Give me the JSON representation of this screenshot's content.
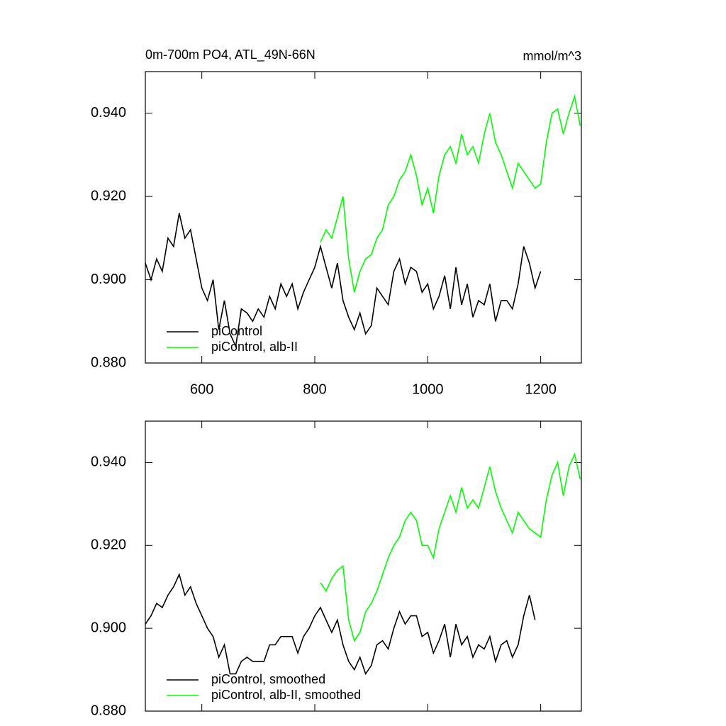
{
  "chart_data": [
    {
      "type": "line",
      "title": "0m-700m PO4, ATL_49N-66N",
      "unit_label": "mmol/m^3",
      "xlim": [
        500,
        1272
      ],
      "ylim": [
        0.88,
        0.95
      ],
      "xticks": [
        600,
        800,
        1000,
        1200
      ],
      "yticks": [
        {
          "value": 0.88,
          "label": "0.880"
        },
        {
          "value": 0.9,
          "label": "0.900"
        },
        {
          "value": 0.92,
          "label": "0.920"
        },
        {
          "value": 0.94,
          "label": "0.940"
        }
      ],
      "legend": "lower left",
      "series": [
        {
          "name": "piControl",
          "color": "#000000",
          "x": [
            500,
            510,
            520,
            530,
            540,
            550,
            560,
            570,
            580,
            590,
            600,
            610,
            620,
            630,
            640,
            650,
            660,
            670,
            680,
            690,
            700,
            710,
            720,
            730,
            740,
            750,
            760,
            770,
            780,
            790,
            800,
            810,
            820,
            830,
            840,
            850,
            860,
            870,
            880,
            890,
            900,
            910,
            920,
            930,
            940,
            950,
            960,
            970,
            980,
            990,
            1000,
            1010,
            1020,
            1030,
            1040,
            1050,
            1060,
            1070,
            1080,
            1090,
            1100,
            1110,
            1120,
            1130,
            1140,
            1150,
            1160,
            1170,
            1180,
            1190,
            1200
          ],
          "values": [
            0.904,
            0.9,
            0.905,
            0.902,
            0.91,
            0.908,
            0.916,
            0.91,
            0.912,
            0.905,
            0.898,
            0.895,
            0.9,
            0.888,
            0.895,
            0.887,
            0.884,
            0.893,
            0.892,
            0.89,
            0.893,
            0.891,
            0.896,
            0.893,
            0.899,
            0.896,
            0.899,
            0.893,
            0.897,
            0.9,
            0.903,
            0.908,
            0.903,
            0.898,
            0.904,
            0.895,
            0.891,
            0.888,
            0.892,
            0.887,
            0.889,
            0.898,
            0.896,
            0.894,
            0.902,
            0.905,
            0.899,
            0.903,
            0.902,
            0.897,
            0.899,
            0.893,
            0.896,
            0.901,
            0.893,
            0.903,
            0.894,
            0.899,
            0.891,
            0.895,
            0.894,
            0.899,
            0.89,
            0.895,
            0.895,
            0.893,
            0.899,
            0.908,
            0.904,
            0.898,
            0.902
          ]
        },
        {
          "name": "piControl, alb-II",
          "color": "#00ff00",
          "x": [
            810,
            820,
            830,
            840,
            850,
            860,
            870,
            880,
            890,
            900,
            910,
            920,
            930,
            940,
            950,
            960,
            970,
            980,
            990,
            1000,
            1010,
            1020,
            1030,
            1040,
            1050,
            1060,
            1070,
            1080,
            1090,
            1100,
            1110,
            1120,
            1130,
            1140,
            1150,
            1160,
            1170,
            1180,
            1190,
            1200,
            1210,
            1220,
            1230,
            1240,
            1250,
            1260,
            1270
          ],
          "values": [
            0.909,
            0.912,
            0.91,
            0.915,
            0.92,
            0.905,
            0.897,
            0.902,
            0.905,
            0.906,
            0.91,
            0.912,
            0.918,
            0.92,
            0.924,
            0.926,
            0.93,
            0.925,
            0.918,
            0.922,
            0.916,
            0.925,
            0.93,
            0.932,
            0.928,
            0.935,
            0.93,
            0.932,
            0.928,
            0.935,
            0.94,
            0.933,
            0.93,
            0.926,
            0.922,
            0.928,
            0.926,
            0.924,
            0.922,
            0.923,
            0.933,
            0.94,
            0.941,
            0.935,
            0.94,
            0.944,
            0.937
          ]
        }
      ]
    },
    {
      "type": "line",
      "xlim": [
        500,
        1272
      ],
      "ylim": [
        0.88,
        0.95
      ],
      "xticks": [
        600,
        800,
        1000,
        1200
      ],
      "yticks": [
        {
          "value": 0.88,
          "label": "0.880"
        },
        {
          "value": 0.9,
          "label": "0.900"
        },
        {
          "value": 0.92,
          "label": "0.920"
        },
        {
          "value": 0.94,
          "label": "0.940"
        }
      ],
      "legend": "lower left",
      "series": [
        {
          "name": "piControl, smoothed",
          "color": "#000000",
          "x": [
            500,
            510,
            520,
            530,
            540,
            550,
            560,
            570,
            580,
            590,
            600,
            610,
            620,
            630,
            640,
            650,
            660,
            670,
            680,
            690,
            700,
            710,
            720,
            730,
            740,
            750,
            760,
            770,
            780,
            790,
            800,
            810,
            820,
            830,
            840,
            850,
            860,
            870,
            880,
            890,
            900,
            910,
            920,
            930,
            940,
            950,
            960,
            970,
            980,
            990,
            1000,
            1010,
            1020,
            1030,
            1040,
            1050,
            1060,
            1070,
            1080,
            1090,
            1100,
            1110,
            1120,
            1130,
            1140,
            1150,
            1160,
            1170,
            1180,
            1190
          ],
          "values": [
            0.901,
            0.903,
            0.906,
            0.905,
            0.908,
            0.91,
            0.913,
            0.908,
            0.91,
            0.906,
            0.903,
            0.9,
            0.898,
            0.893,
            0.896,
            0.889,
            0.889,
            0.892,
            0.893,
            0.892,
            0.892,
            0.892,
            0.896,
            0.896,
            0.898,
            0.898,
            0.898,
            0.894,
            0.898,
            0.9,
            0.903,
            0.905,
            0.902,
            0.899,
            0.902,
            0.896,
            0.892,
            0.89,
            0.893,
            0.889,
            0.891,
            0.896,
            0.897,
            0.895,
            0.9,
            0.904,
            0.901,
            0.903,
            0.903,
            0.898,
            0.899,
            0.894,
            0.897,
            0.901,
            0.893,
            0.901,
            0.896,
            0.898,
            0.893,
            0.896,
            0.895,
            0.898,
            0.892,
            0.896,
            0.897,
            0.893,
            0.896,
            0.903,
            0.908,
            0.902
          ]
        },
        {
          "name": "piControl, alb-II, smoothed",
          "color": "#00ff00",
          "x": [
            810,
            820,
            830,
            840,
            850,
            860,
            870,
            880,
            890,
            900,
            910,
            920,
            930,
            940,
            950,
            960,
            970,
            980,
            990,
            1000,
            1010,
            1020,
            1030,
            1040,
            1050,
            1060,
            1070,
            1080,
            1090,
            1100,
            1110,
            1120,
            1130,
            1140,
            1150,
            1160,
            1170,
            1180,
            1190,
            1200,
            1210,
            1220,
            1230,
            1240,
            1250,
            1260,
            1270
          ],
          "values": [
            0.911,
            0.909,
            0.912,
            0.914,
            0.915,
            0.902,
            0.897,
            0.899,
            0.904,
            0.906,
            0.909,
            0.913,
            0.917,
            0.92,
            0.922,
            0.926,
            0.928,
            0.926,
            0.92,
            0.92,
            0.917,
            0.924,
            0.928,
            0.932,
            0.928,
            0.934,
            0.929,
            0.931,
            0.929,
            0.934,
            0.939,
            0.933,
            0.929,
            0.926,
            0.923,
            0.928,
            0.926,
            0.924,
            0.923,
            0.922,
            0.931,
            0.937,
            0.94,
            0.932,
            0.939,
            0.942,
            0.936
          ]
        }
      ]
    }
  ]
}
